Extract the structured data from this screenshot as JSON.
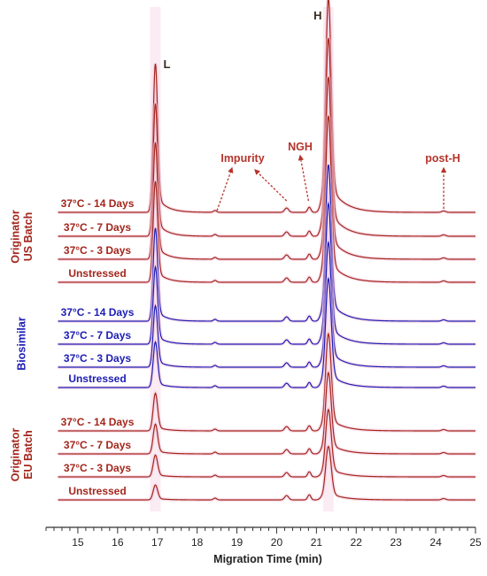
{
  "chart_data": {
    "type": "line",
    "xlabel": "Migration Time (min)",
    "xlim": [
      14.2,
      25.0
    ],
    "x_ticks": [
      15,
      16,
      17,
      18,
      19,
      20,
      21,
      22,
      23,
      24,
      25
    ],
    "grid": false,
    "colors": {
      "originator": "#a3261c",
      "biosimilar": "#1c1cb4",
      "glow": "#f4c6dc"
    },
    "peaks": [
      {
        "label": "L",
        "x": 16.95
      },
      {
        "label": "H",
        "x": 21.3
      }
    ],
    "annotations": [
      {
        "text": "Impurity",
        "points_to": [
          18.5,
          20.25
        ]
      },
      {
        "text": "NGH",
        "points_to": [
          20.8
        ]
      },
      {
        "text": "post-H",
        "points_to": [
          24.2
        ]
      }
    ],
    "groups": [
      {
        "name": "Originator US Batch",
        "color": "originator",
        "series": [
          {
            "name": "37°C - 14 Days",
            "L_height": 7.5,
            "H_height": 10.8
          },
          {
            "name": "37°C - 7 Days",
            "L_height": 6.7,
            "H_height": 10.0
          },
          {
            "name": "37°C - 3 Days",
            "L_height": 5.9,
            "H_height": 9.2
          },
          {
            "name": "Unstressed",
            "L_height": 5.1,
            "H_height": 8.4
          }
        ]
      },
      {
        "name": "Biosimilar",
        "color": "biosimilar",
        "series": [
          {
            "name": "37°C - 14 Days",
            "L_height": 4.7,
            "H_height": 7.9
          },
          {
            "name": "37°C - 7 Days",
            "L_height": 3.9,
            "H_height": 7.1
          },
          {
            "name": "37°C - 3 Days",
            "L_height": 3.1,
            "H_height": 6.3
          },
          {
            "name": "Unstressed",
            "L_height": 2.3,
            "H_height": 5.5
          }
        ]
      },
      {
        "name": "Originator EU Batch",
        "color": "originator",
        "series": [
          {
            "name": "37°C - 14 Days",
            "L_height": 1.9,
            "H_height": 4.9
          },
          {
            "name": "37°C - 7 Days",
            "L_height": 1.5,
            "H_height": 4.1
          },
          {
            "name": "37°C - 3 Days",
            "L_height": 1.1,
            "H_height": 3.4
          },
          {
            "name": "Unstressed",
            "L_height": 0.75,
            "H_height": 2.7
          }
        ]
      }
    ]
  }
}
